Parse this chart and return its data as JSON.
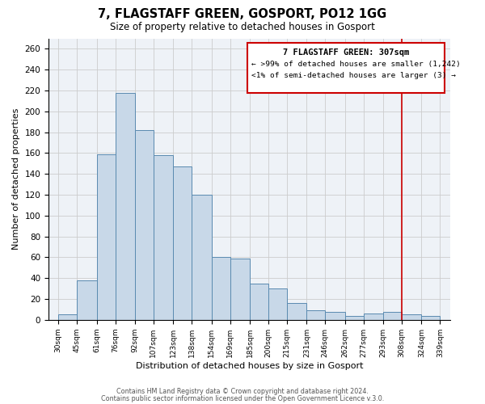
{
  "title": "7, FLAGSTAFF GREEN, GOSPORT, PO12 1GG",
  "subtitle": "Size of property relative to detached houses in Gosport",
  "xlabel": "Distribution of detached houses by size in Gosport",
  "ylabel": "Number of detached properties",
  "bar_left_edges": [
    30,
    45,
    61,
    76,
    92,
    107,
    123,
    138,
    154,
    169,
    185,
    200,
    215,
    231,
    246,
    262,
    277,
    293,
    308,
    324
  ],
  "bar_widths": [
    15,
    16,
    15,
    16,
    15,
    16,
    15,
    16,
    15,
    16,
    15,
    15,
    16,
    15,
    16,
    15,
    16,
    15,
    16,
    15
  ],
  "bar_heights": [
    5,
    38,
    159,
    218,
    182,
    158,
    147,
    120,
    60,
    59,
    35,
    30,
    16,
    9,
    8,
    4,
    6,
    8,
    5,
    4
  ],
  "bar_color": "#c8d8e8",
  "bar_edgecolor": "#5a8ab0",
  "grid_color": "#cccccc",
  "vline_x": 308,
  "vline_color": "#cc0000",
  "box_color": "#cc0000",
  "ylim": [
    0,
    270
  ],
  "yticks": [
    0,
    20,
    40,
    60,
    80,
    100,
    120,
    140,
    160,
    180,
    200,
    220,
    240,
    260
  ],
  "xlim": [
    22,
    347
  ],
  "xtick_labels": [
    "30sqm",
    "45sqm",
    "61sqm",
    "76sqm",
    "92sqm",
    "107sqm",
    "123sqm",
    "138sqm",
    "154sqm",
    "169sqm",
    "185sqm",
    "200sqm",
    "215sqm",
    "231sqm",
    "246sqm",
    "262sqm",
    "277sqm",
    "293sqm",
    "308sqm",
    "324sqm",
    "339sqm"
  ],
  "xtick_positions": [
    30,
    45,
    61,
    76,
    92,
    107,
    123,
    138,
    154,
    169,
    185,
    200,
    215,
    231,
    246,
    262,
    277,
    293,
    308,
    324,
    339
  ],
  "annotation_title": "7 FLAGSTAFF GREEN: 307sqm",
  "annotation_line1": "← >99% of detached houses are smaller (1,242)",
  "annotation_line2": "<1% of semi-detached houses are larger (3) →",
  "footnote1": "Contains HM Land Registry data © Crown copyright and database right 2024.",
  "footnote2": "Contains public sector information licensed under the Open Government Licence v.3.0.",
  "background_color": "#eef2f7"
}
